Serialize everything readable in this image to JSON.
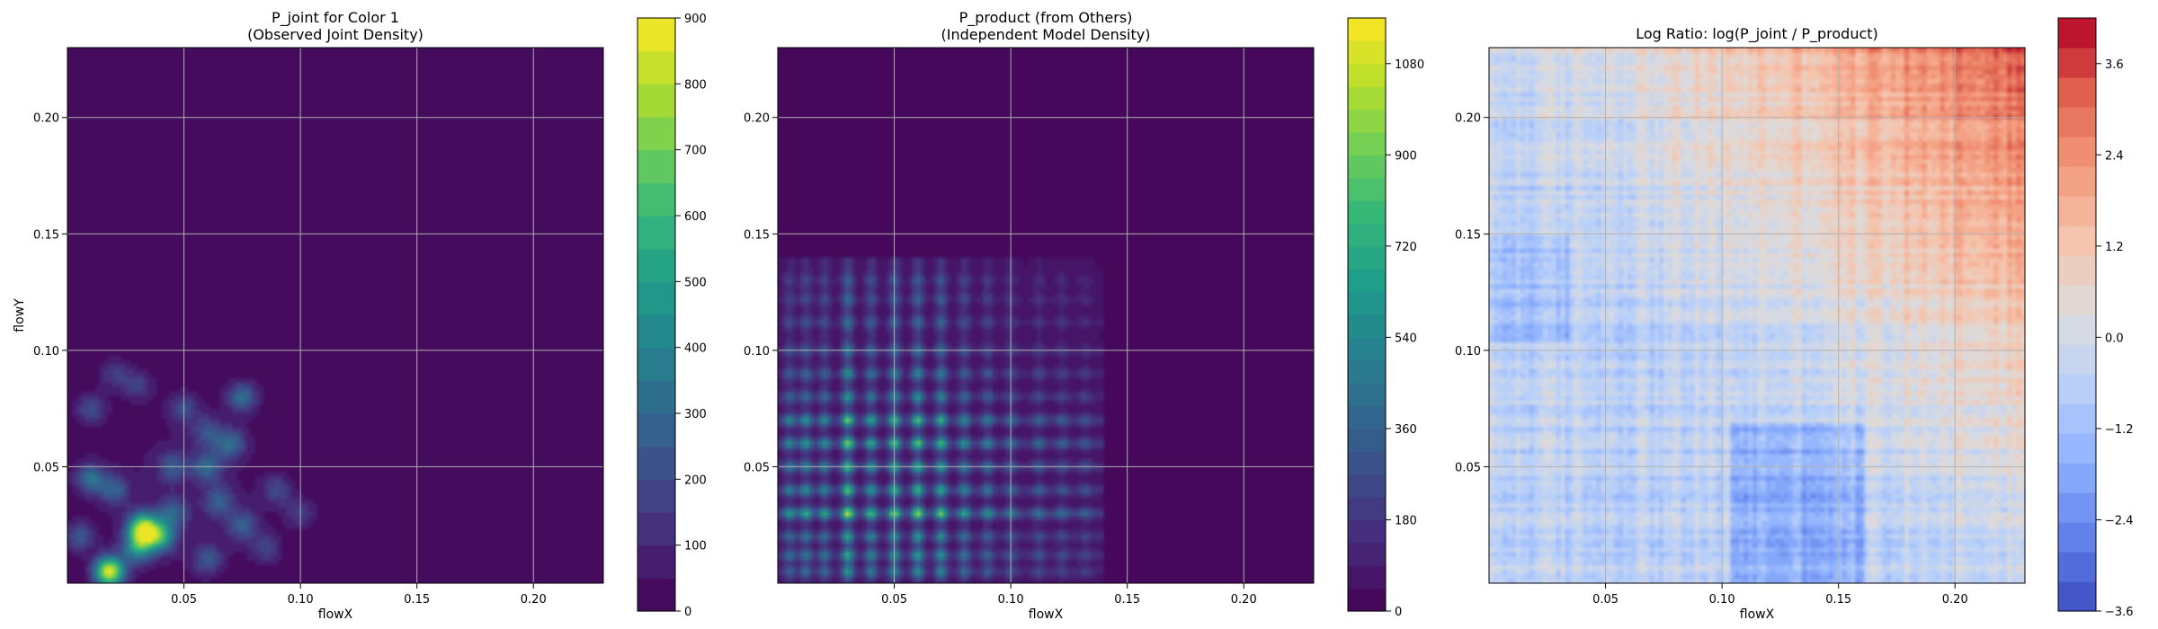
{
  "chart_data": [
    {
      "type": "heatmap",
      "title": "P_joint for Color 1\n(Observed Joint Density)",
      "xlabel": "flowX",
      "ylabel": "flowY",
      "xlim": [
        0.0,
        0.23
      ],
      "ylim": [
        0.0,
        0.23
      ],
      "xticks": [
        0.05,
        0.1,
        0.15,
        0.2
      ],
      "xtick_labels": [
        "0.05",
        "0.10",
        "0.15",
        "0.20"
      ],
      "yticks": [
        0.05,
        0.1,
        0.15,
        0.2
      ],
      "ytick_labels": [
        "0.05",
        "0.10",
        "0.15",
        "0.20"
      ],
      "grid": true,
      "colormap": "viridis",
      "colorbar": {
        "min": 0,
        "max": 900,
        "ticks": [
          0,
          100,
          200,
          300,
          400,
          500,
          600,
          700,
          800,
          900
        ],
        "tick_labels": [
          "0",
          "100",
          "200",
          "300",
          "400",
          "500",
          "600",
          "700",
          "800",
          "900"
        ]
      },
      "hotspots": [
        {
          "x": 0.01,
          "y": 0.045,
          "v": 320
        },
        {
          "x": 0.02,
          "y": 0.04,
          "v": 240
        },
        {
          "x": 0.032,
          "y": 0.025,
          "v": 280
        },
        {
          "x": 0.045,
          "y": 0.03,
          "v": 250
        },
        {
          "x": 0.018,
          "y": 0.005,
          "v": 850
        },
        {
          "x": 0.03,
          "y": 0.015,
          "v": 400
        },
        {
          "x": 0.04,
          "y": 0.02,
          "v": 450
        },
        {
          "x": 0.033,
          "y": 0.022,
          "v": 600
        },
        {
          "x": 0.06,
          "y": 0.05,
          "v": 260
        },
        {
          "x": 0.07,
          "y": 0.06,
          "v": 280
        },
        {
          "x": 0.075,
          "y": 0.08,
          "v": 300
        },
        {
          "x": 0.06,
          "y": 0.065,
          "v": 200
        },
        {
          "x": 0.05,
          "y": 0.075,
          "v": 180
        },
        {
          "x": 0.03,
          "y": 0.085,
          "v": 160
        },
        {
          "x": 0.01,
          "y": 0.075,
          "v": 200
        },
        {
          "x": 0.02,
          "y": 0.09,
          "v": 150
        },
        {
          "x": 0.09,
          "y": 0.04,
          "v": 180
        },
        {
          "x": 0.1,
          "y": 0.03,
          "v": 150
        },
        {
          "x": 0.085,
          "y": 0.015,
          "v": 160
        },
        {
          "x": 0.06,
          "y": 0.01,
          "v": 220
        },
        {
          "x": 0.045,
          "y": 0.05,
          "v": 200
        },
        {
          "x": 0.075,
          "y": 0.025,
          "v": 250
        },
        {
          "x": 0.005,
          "y": 0.02,
          "v": 220
        },
        {
          "x": 0.065,
          "y": 0.035,
          "v": 230
        }
      ]
    },
    {
      "type": "heatmap",
      "title": "P_product (from Others)\n(Independent Model Density)",
      "xlabel": "flowX",
      "ylabel": "",
      "xlim": [
        0.0,
        0.23
      ],
      "ylim": [
        0.0,
        0.23
      ],
      "xticks": [
        0.05,
        0.1,
        0.15,
        0.2
      ],
      "xtick_labels": [
        "0.05",
        "0.10",
        "0.15",
        "0.20"
      ],
      "yticks": [
        0.05,
        0.1,
        0.15,
        0.2
      ],
      "ytick_labels": [
        "0.05",
        "0.10",
        "0.15",
        "0.20"
      ],
      "grid": true,
      "colormap": "viridis",
      "colorbar": {
        "min": 0,
        "max": 1170,
        "ticks": [
          0,
          180,
          360,
          540,
          720,
          900,
          1080
        ],
        "tick_labels": [
          "0",
          "180",
          "360",
          "540",
          "720",
          "900",
          "1080"
        ]
      },
      "marginal_x": [
        {
          "x": 0.005,
          "w": 0.5
        },
        {
          "x": 0.012,
          "w": 0.6
        },
        {
          "x": 0.02,
          "w": 0.55
        },
        {
          "x": 0.03,
          "w": 1.0
        },
        {
          "x": 0.04,
          "w": 0.7
        },
        {
          "x": 0.05,
          "w": 0.85
        },
        {
          "x": 0.06,
          "w": 0.9
        },
        {
          "x": 0.07,
          "w": 0.8
        },
        {
          "x": 0.08,
          "w": 0.55
        },
        {
          "x": 0.09,
          "w": 0.45
        },
        {
          "x": 0.1,
          "w": 0.35
        },
        {
          "x": 0.112,
          "w": 0.3
        },
        {
          "x": 0.122,
          "w": 0.25
        },
        {
          "x": 0.132,
          "w": 0.2
        }
      ],
      "marginal_y": [
        {
          "y": 0.005,
          "w": 0.5
        },
        {
          "y": 0.012,
          "w": 0.6
        },
        {
          "y": 0.02,
          "w": 0.55
        },
        {
          "y": 0.03,
          "w": 1.0
        },
        {
          "y": 0.04,
          "w": 0.75
        },
        {
          "y": 0.05,
          "w": 0.7
        },
        {
          "y": 0.06,
          "w": 0.85
        },
        {
          "y": 0.07,
          "w": 0.8
        },
        {
          "y": 0.08,
          "w": 0.5
        },
        {
          "y": 0.09,
          "w": 0.45
        },
        {
          "y": 0.1,
          "w": 0.35
        },
        {
          "y": 0.112,
          "w": 0.3
        },
        {
          "y": 0.122,
          "w": 0.25
        },
        {
          "y": 0.13,
          "w": 0.2
        }
      ]
    },
    {
      "type": "heatmap",
      "title": "Log Ratio: log(P_joint / P_product)",
      "xlabel": "flowX",
      "ylabel": "",
      "xlim": [
        0.0,
        0.23
      ],
      "ylim": [
        0.0,
        0.23
      ],
      "xticks": [
        0.05,
        0.1,
        0.15,
        0.2
      ],
      "xtick_labels": [
        "0.05",
        "0.10",
        "0.15",
        "0.20"
      ],
      "yticks": [
        0.05,
        0.1,
        0.15,
        0.2
      ],
      "ytick_labels": [
        "0.05",
        "0.10",
        "0.15",
        "0.20"
      ],
      "grid": true,
      "colormap": "coolwarm",
      "colorbar": {
        "min": -3.6,
        "max": 4.2,
        "ticks": [
          -3.6,
          -2.4,
          -1.2,
          0.0,
          1.2,
          2.4,
          3.6
        ],
        "tick_labels": [
          "−3.6",
          "−2.4",
          "−1.2",
          "0.0",
          "1.2",
          "2.4",
          "3.6"
        ]
      },
      "trend": "increases toward upper-right (max ~4), mixed near zero elsewhere, negative pockets near lower-middle"
    }
  ]
}
